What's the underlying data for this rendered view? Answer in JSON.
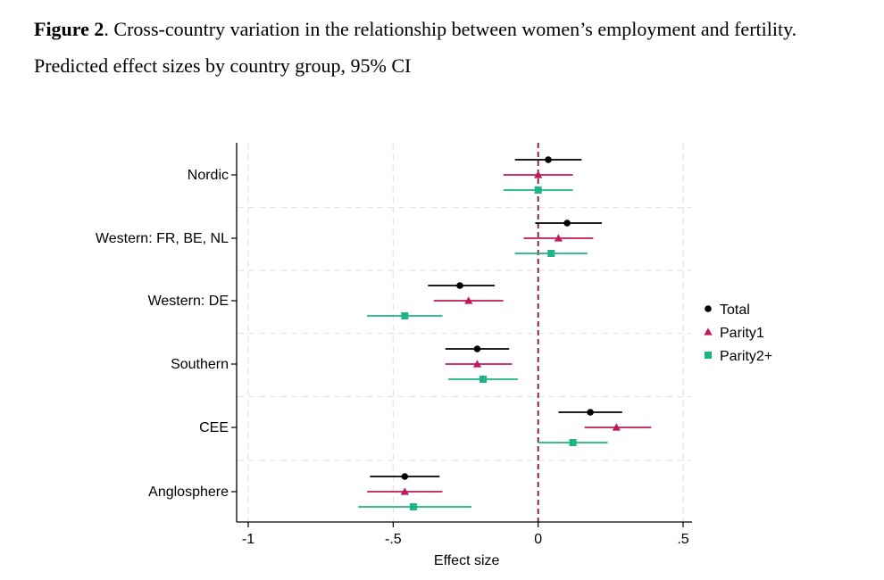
{
  "figure": {
    "number_label": "Figure 2",
    "title_rest": ". Cross-country variation in the relationship between women’s employment and fertility.",
    "subtitle": "Predicted effect sizes by country group, 95% CI"
  },
  "chart_data": {
    "type": "scatter",
    "title": "",
    "xlabel": "Effect size",
    "ylabel": "",
    "xlim": [
      -1,
      0.5
    ],
    "x_ticks": [
      {
        "value": -1,
        "label": "-1"
      },
      {
        "value": -0.5,
        "label": "-.5"
      },
      {
        "value": 0,
        "label": "0"
      },
      {
        "value": 0.5,
        "label": ".5"
      }
    ],
    "reference_line": {
      "x": 0,
      "style": "dashed",
      "color": "#7a1a1a"
    },
    "grid": true,
    "legend_position": "right",
    "categories": [
      "Nordic",
      "Western: FR, BE, NL",
      "Western: DE",
      "Southern",
      "CEE",
      "Anglosphere"
    ],
    "series": [
      {
        "name": "Total",
        "marker": "circle",
        "color": "#000000",
        "points": [
          {
            "estimate": 0.035,
            "lo": -0.08,
            "hi": 0.15
          },
          {
            "estimate": 0.1,
            "lo": -0.01,
            "hi": 0.22
          },
          {
            "estimate": -0.27,
            "lo": -0.38,
            "hi": -0.15
          },
          {
            "estimate": -0.21,
            "lo": -0.32,
            "hi": -0.1
          },
          {
            "estimate": 0.18,
            "lo": 0.07,
            "hi": 0.29
          },
          {
            "estimate": -0.46,
            "lo": -0.58,
            "hi": -0.34
          }
        ]
      },
      {
        "name": "Parity1",
        "marker": "triangle",
        "color": "#c2185b",
        "points": [
          {
            "estimate": 0.0,
            "lo": -0.12,
            "hi": 0.12
          },
          {
            "estimate": 0.07,
            "lo": -0.05,
            "hi": 0.19
          },
          {
            "estimate": -0.24,
            "lo": -0.36,
            "hi": -0.12
          },
          {
            "estimate": -0.21,
            "lo": -0.32,
            "hi": -0.09
          },
          {
            "estimate": 0.27,
            "lo": 0.16,
            "hi": 0.39
          },
          {
            "estimate": -0.46,
            "lo": -0.59,
            "hi": -0.33
          }
        ]
      },
      {
        "name": "Parity2+",
        "marker": "square",
        "color": "#1db584",
        "points": [
          {
            "estimate": 0.0,
            "lo": -0.12,
            "hi": 0.12
          },
          {
            "estimate": 0.045,
            "lo": -0.08,
            "hi": 0.17
          },
          {
            "estimate": -0.46,
            "lo": -0.59,
            "hi": -0.33
          },
          {
            "estimate": -0.19,
            "lo": -0.31,
            "hi": -0.07
          },
          {
            "estimate": 0.12,
            "lo": 0.0,
            "hi": 0.24
          },
          {
            "estimate": -0.43,
            "lo": -0.62,
            "hi": -0.23
          }
        ]
      }
    ]
  }
}
